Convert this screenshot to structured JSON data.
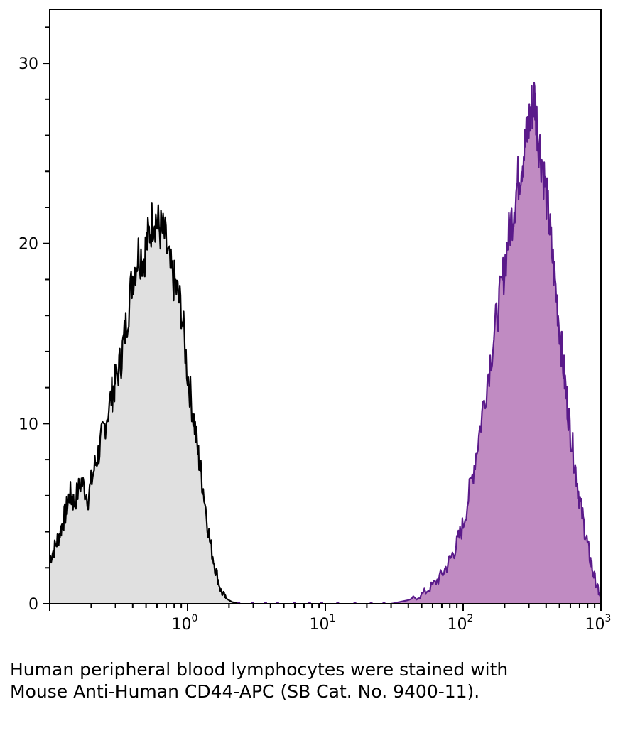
{
  "caption": "Human peripheral blood lymphocytes were stained with Mouse Anti-Human CD44-APC (SB Cat. No. 9400-11).",
  "colors": {
    "control_fill": "#e0e0e0",
    "control_line": "#000000",
    "stained_fill": "#c08bc2",
    "stained_line": "#5a1a8a",
    "axis": "#000000"
  },
  "chart_data": {
    "type": "area",
    "title": "",
    "xlabel": "",
    "ylabel": "",
    "x_scale": "log",
    "xlim": [
      0.1,
      1000
    ],
    "ylim": [
      0,
      33
    ],
    "grid": false,
    "x_ticks": [
      {
        "base": "10",
        "exp": "0",
        "value": 1
      },
      {
        "base": "10",
        "exp": "1",
        "value": 10
      },
      {
        "base": "10",
        "exp": "2",
        "value": 100
      },
      {
        "base": "10",
        "exp": "3",
        "value": 1000
      }
    ],
    "y_ticks": [
      {
        "label": "0",
        "value": 0
      },
      {
        "label": "10",
        "value": 10
      },
      {
        "label": "20",
        "value": 20
      },
      {
        "label": "30",
        "value": 30
      }
    ],
    "series": [
      {
        "style": "control",
        "x": [
          0.1,
          0.11,
          0.12,
          0.13,
          0.14,
          0.15,
          0.17,
          0.19,
          0.21,
          0.23,
          0.25,
          0.28,
          0.3,
          0.33,
          0.36,
          0.4,
          0.44,
          0.48,
          0.52,
          0.57,
          0.62,
          0.68,
          0.75,
          0.82,
          0.9,
          1.0,
          1.1,
          1.2,
          1.3,
          1.45,
          1.6,
          1.75,
          1.9,
          2.1,
          2.4
        ],
        "y": [
          2.5,
          3.2,
          4.1,
          5.0,
          6.1,
          5.6,
          6.8,
          5.9,
          7.5,
          8.6,
          9.9,
          11.5,
          12.3,
          13.6,
          15.6,
          18.2,
          19.5,
          19.2,
          20.4,
          21.6,
          20.9,
          20.4,
          18.5,
          17.6,
          16.4,
          12.8,
          10.5,
          8.2,
          6.4,
          3.5,
          1.9,
          0.7,
          0.3,
          0.1,
          0.0
        ]
      },
      {
        "style": "stained",
        "x": [
          30,
          40,
          50,
          60,
          70,
          80,
          90,
          100,
          115,
          130,
          150,
          170,
          190,
          210,
          230,
          250,
          270,
          290,
          310,
          330,
          350,
          380,
          410,
          440,
          480,
          520,
          560,
          600,
          650,
          700,
          760,
          820,
          880,
          950,
          1000
        ],
        "y": [
          0.0,
          0.2,
          0.5,
          1.0,
          1.6,
          2.4,
          3.3,
          4.4,
          6.8,
          9.3,
          12.5,
          15.2,
          17.5,
          20.0,
          21.8,
          23.5,
          24.8,
          25.9,
          27.4,
          28.1,
          26.0,
          24.2,
          22.0,
          19.6,
          16.8,
          14.0,
          11.6,
          9.6,
          7.6,
          5.8,
          4.2,
          2.8,
          1.7,
          0.8,
          0.2
        ]
      }
    ]
  }
}
